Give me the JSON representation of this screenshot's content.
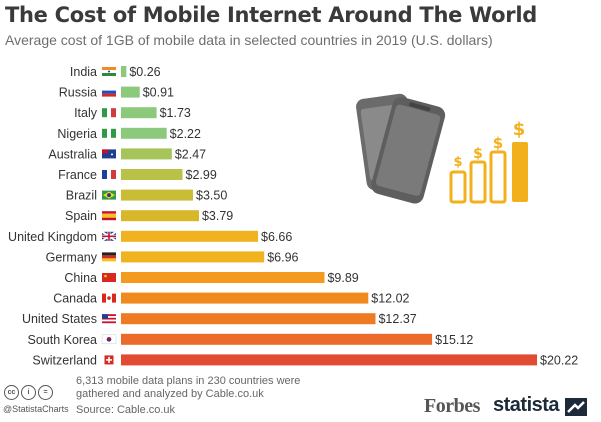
{
  "header": {
    "title": "The Cost of Mobile Internet Around The World",
    "subtitle": "Average cost of 1GB of mobile data in selected countries in 2019 (U.S. dollars)"
  },
  "chart_data": {
    "type": "bar",
    "orientation": "horizontal",
    "title": "The Cost of Mobile Internet Around The World",
    "subtitle": "Average cost of 1GB of mobile data in selected countries in 2019 (U.S. dollars)",
    "categories": [
      "India",
      "Russia",
      "Italy",
      "Nigeria",
      "Australia",
      "France",
      "Brazil",
      "Spain",
      "United Kingdom",
      "Germany",
      "China",
      "Canada",
      "United States",
      "South Korea",
      "Switzerland"
    ],
    "values": [
      0.26,
      0.91,
      1.73,
      2.22,
      2.47,
      2.99,
      3.5,
      3.79,
      6.66,
      6.96,
      9.89,
      12.02,
      12.37,
      15.12,
      20.22
    ],
    "value_labels": [
      "$0.26",
      "$0.91",
      "$1.73",
      "$2.22",
      "$2.47",
      "$2.99",
      "$3.50",
      "$3.79",
      "$6.66",
      "$6.96",
      "$9.89",
      "$12.02",
      "$12.37",
      "$15.12",
      "$20.22"
    ],
    "flag_icons": [
      "flag-india-icon",
      "flag-russia-icon",
      "flag-italy-icon",
      "flag-nigeria-icon",
      "flag-australia-icon",
      "flag-france-icon",
      "flag-brazil-icon",
      "flag-spain-icon",
      "flag-uk-icon",
      "flag-germany-icon",
      "flag-china-icon",
      "flag-canada-icon",
      "flag-usa-icon",
      "flag-south-korea-icon",
      "flag-switzerland-icon"
    ],
    "bar_colors": [
      "#8cc97a",
      "#8cc97a",
      "#8cc97a",
      "#8cc97a",
      "#a6c45a",
      "#b9c246",
      "#c9bd35",
      "#d8b72b",
      "#f0b21e",
      "#f0b21e",
      "#f39a1f",
      "#f08a1f",
      "#ee7a24",
      "#ec6a2a",
      "#e24b32"
    ],
    "xlim": [
      0,
      20.22
    ],
    "grid": false,
    "legend": "none"
  },
  "illustration": {
    "icons": [
      "smartphone-icon",
      "smartphone-icon",
      "rising-cost-bars-icon",
      "dollar-sign-icon"
    ],
    "dollar_glyph": "$"
  },
  "footer": {
    "license_icons": [
      "creative-commons-icon",
      "attribution-icon",
      "no-derivatives-icon"
    ],
    "license_glyphs": [
      "cc",
      "i",
      "="
    ],
    "handle": "@StatistaCharts",
    "note": "6,313 mobile data plans in 230 countries were gathered and analyzed by Cable.co.uk",
    "source": "Source: Cable.co.uk",
    "partner_logo": "Forbes",
    "brand_logo": "statista"
  }
}
